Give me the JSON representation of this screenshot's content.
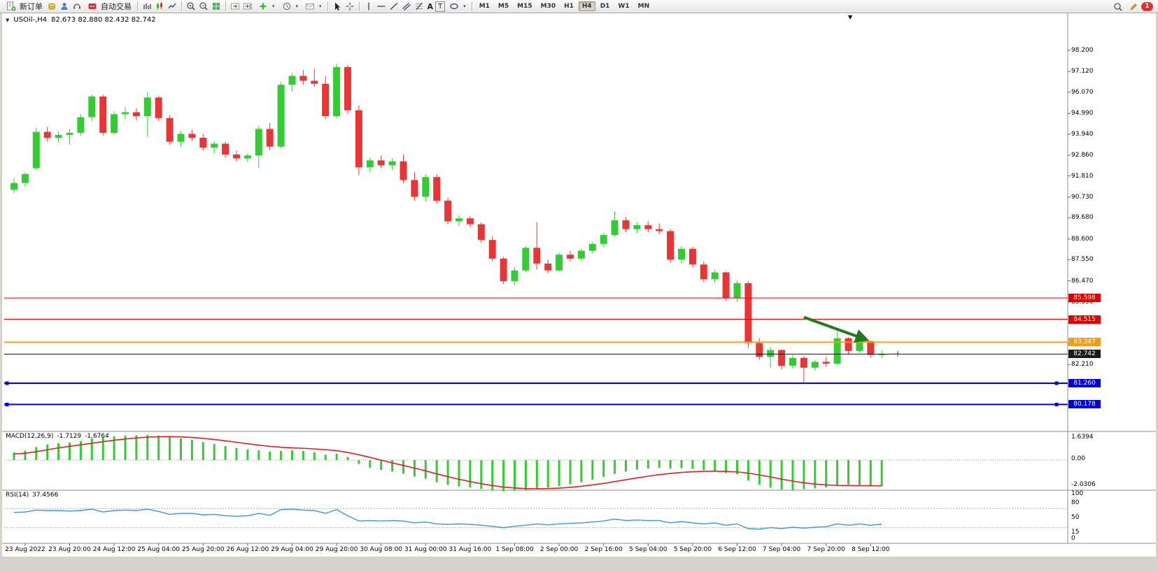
{
  "toolbar": {
    "new_order_label": "新订单",
    "autotrading_label": "自动交易",
    "text_tool_label": "A",
    "label_tool_label": "T",
    "timeframes": [
      "M1",
      "M5",
      "M15",
      "M30",
      "H1",
      "H4",
      "D1",
      "W1",
      "MN"
    ],
    "active_timeframe": "H4",
    "notification_count": "1"
  },
  "chart_header": {
    "symbol_period": "USOil-,H4",
    "ohlc_values": "82.673 82.880 82.432 82.742"
  },
  "price_axis": {
    "ticks": [
      "98.200",
      "97.120",
      "96.070",
      "94.990",
      "93.940",
      "92.860",
      "91.810",
      "90.730",
      "89.680",
      "88.600",
      "87.550",
      "86.470",
      "85.390",
      "84.340",
      "83.260",
      "82.210",
      "81.130",
      "80.080"
    ]
  },
  "line_objects": [
    {
      "price": 85.598,
      "label": "85.598",
      "color": "#f00000",
      "badge": "#e00000",
      "width": 1,
      "handles": false
    },
    {
      "price": 84.515,
      "label": "84.515",
      "color": "#f00000",
      "badge": "#e00000",
      "width": 1,
      "handles": false
    },
    {
      "price": 83.347,
      "label": "83.347",
      "color": "#f0a11a",
      "badge": "#ef9f16",
      "width": 2,
      "handles": false
    },
    {
      "price": 82.742,
      "label": "82.742",
      "color": "#111111",
      "badge": "#1a1a1a",
      "width": 1,
      "handles": false
    },
    {
      "price": 81.26,
      "label": "81.260",
      "color": "#0000e8",
      "badge": "#0000dd",
      "width": 2,
      "handles": true
    },
    {
      "price": 80.178,
      "label": "80.178",
      "color": "#0000e8",
      "badge": "#0000dd",
      "width": 2,
      "handles": true
    }
  ],
  "indicators": {
    "macd": {
      "label": "MACD(12,26,9)",
      "main_value": "-1.7129",
      "signal_value": "-1.6764",
      "scale_labels": [
        "1.6394",
        "0.00",
        "-2.0306"
      ]
    },
    "rsi": {
      "label": "RSI(14)",
      "value": "37.4566",
      "scale_labels": [
        "100",
        "80",
        "50",
        "15",
        "0"
      ]
    }
  },
  "time_axis": {
    "labels": [
      "23 Aug 2022",
      "23 Aug 20:00",
      "24 Aug 12:00",
      "25 Aug 04:00",
      "25 Aug 20:00",
      "26 Aug 12:00",
      "29 Aug 04:00",
      "29 Aug 20:00",
      "30 Aug 08:00",
      "31 Aug 00:00",
      "31 Aug 16:00",
      "1 Sep 08:00",
      "2 Sep 00:00",
      "2 Sep 16:00",
      "5 Sep 04:00",
      "5 Sep 20:00",
      "6 Sep 12:00",
      "7 Sep 04:00",
      "7 Sep 20:00",
      "8 Sep 12:00"
    ]
  },
  "chart_data": {
    "type": "candlestick",
    "symbol": "USOil",
    "timeframe": "H4",
    "ohlc_display": [
      82.673,
      82.88,
      82.432,
      82.742
    ],
    "colors": {
      "bull": "#33cc33",
      "bear": "#e83535",
      "macd_histogram": "#33cc33",
      "macd_signal": "#e02020",
      "rsi_line": "#3b95db"
    },
    "candles": [
      [
        91.1,
        91.7,
        90.95,
        91.45
      ],
      [
        91.45,
        92.0,
        91.25,
        91.9
      ],
      [
        92.2,
        94.25,
        92.1,
        94.05
      ],
      [
        94.05,
        94.3,
        93.55,
        93.75
      ],
      [
        93.75,
        94.1,
        93.5,
        93.9
      ],
      [
        93.9,
        94.2,
        93.4,
        94.0
      ],
      [
        94.0,
        94.95,
        93.85,
        94.8
      ],
      [
        94.8,
        95.95,
        94.6,
        95.85
      ],
      [
        95.85,
        95.95,
        93.85,
        94.0
      ],
      [
        94.0,
        95.1,
        93.9,
        94.95
      ],
      [
        94.95,
        95.3,
        94.7,
        95.05
      ],
      [
        95.05,
        95.25,
        94.65,
        94.85
      ],
      [
        94.85,
        96.1,
        93.8,
        95.8
      ],
      [
        95.8,
        95.9,
        94.6,
        94.75
      ],
      [
        94.75,
        94.9,
        93.4,
        93.55
      ],
      [
        93.55,
        94.1,
        93.3,
        93.95
      ],
      [
        93.95,
        94.15,
        93.6,
        93.75
      ],
      [
        93.75,
        93.95,
        93.1,
        93.25
      ],
      [
        93.25,
        93.6,
        92.95,
        93.45
      ],
      [
        93.45,
        93.55,
        92.75,
        92.9
      ],
      [
        92.9,
        93.1,
        92.55,
        92.7
      ],
      [
        92.7,
        92.95,
        92.5,
        92.85
      ],
      [
        92.85,
        94.35,
        92.2,
        94.2
      ],
      [
        94.2,
        94.5,
        93.1,
        93.3
      ],
      [
        93.3,
        96.6,
        93.2,
        96.45
      ],
      [
        96.45,
        97.05,
        96.1,
        96.9
      ],
      [
        96.9,
        97.2,
        96.45,
        96.65
      ],
      [
        96.65,
        97.25,
        96.35,
        96.5
      ],
      [
        96.5,
        96.9,
        94.7,
        94.85
      ],
      [
        94.85,
        97.5,
        94.75,
        97.35
      ],
      [
        97.35,
        97.45,
        94.95,
        95.15
      ],
      [
        95.15,
        95.4,
        91.85,
        92.25
      ],
      [
        92.25,
        92.75,
        92.0,
        92.6
      ],
      [
        92.6,
        92.85,
        92.2,
        92.35
      ],
      [
        92.35,
        92.7,
        92.1,
        92.55
      ],
      [
        92.55,
        92.9,
        91.45,
        91.6
      ],
      [
        91.6,
        92.0,
        90.55,
        90.75
      ],
      [
        90.75,
        91.9,
        90.5,
        91.75
      ],
      [
        91.75,
        91.9,
        90.4,
        90.55
      ],
      [
        90.55,
        90.7,
        89.35,
        89.5
      ],
      [
        89.5,
        89.8,
        89.25,
        89.65
      ],
      [
        89.65,
        89.75,
        89.2,
        89.35
      ],
      [
        89.35,
        89.45,
        88.4,
        88.55
      ],
      [
        88.55,
        88.75,
        87.45,
        87.6
      ],
      [
        87.6,
        87.7,
        86.3,
        86.45
      ],
      [
        86.45,
        87.15,
        86.25,
        87.0
      ],
      [
        87.0,
        88.25,
        86.9,
        88.15
      ],
      [
        88.15,
        89.45,
        87.05,
        87.35
      ],
      [
        87.35,
        87.55,
        86.85,
        87.0
      ],
      [
        87.0,
        87.9,
        86.95,
        87.8
      ],
      [
        87.8,
        88.0,
        87.45,
        87.6
      ],
      [
        87.6,
        88.1,
        87.5,
        88.0
      ],
      [
        88.0,
        88.45,
        87.85,
        88.35
      ],
      [
        88.35,
        88.9,
        88.2,
        88.8
      ],
      [
        88.8,
        90.0,
        88.7,
        89.55
      ],
      [
        89.55,
        89.7,
        88.95,
        89.1
      ],
      [
        89.1,
        89.45,
        88.9,
        89.3
      ],
      [
        89.3,
        89.5,
        88.95,
        89.1
      ],
      [
        89.1,
        89.4,
        88.85,
        89.0
      ],
      [
        89.0,
        89.1,
        87.4,
        87.55
      ],
      [
        87.55,
        88.25,
        87.35,
        88.1
      ],
      [
        88.1,
        88.2,
        87.15,
        87.3
      ],
      [
        87.3,
        87.45,
        86.4,
        86.55
      ],
      [
        86.55,
        87.05,
        86.35,
        86.9
      ],
      [
        86.9,
        86.95,
        85.45,
        85.6
      ],
      [
        85.6,
        86.5,
        85.4,
        86.35
      ],
      [
        86.35,
        86.45,
        83.05,
        83.3
      ],
      [
        83.3,
        83.55,
        82.45,
        82.6
      ],
      [
        82.6,
        83.1,
        82.05,
        82.95
      ],
      [
        82.95,
        83.0,
        81.95,
        82.15
      ],
      [
        82.15,
        82.7,
        82.0,
        82.55
      ],
      [
        82.55,
        82.65,
        81.25,
        82.05
      ],
      [
        82.05,
        82.45,
        81.9,
        82.35
      ],
      [
        82.35,
        82.6,
        82.1,
        82.25
      ],
      [
        82.25,
        83.9,
        82.2,
        83.55
      ],
      [
        83.55,
        83.6,
        82.75,
        82.9
      ],
      [
        82.9,
        83.5,
        82.8,
        83.4
      ],
      [
        83.4,
        83.45,
        82.55,
        82.7
      ],
      [
        82.7,
        82.95,
        82.55,
        82.742
      ]
    ],
    "macd_histogram": [
      0.5,
      0.62,
      0.85,
      1.02,
      1.1,
      1.15,
      1.25,
      1.42,
      1.5,
      1.55,
      1.6,
      1.62,
      1.64,
      1.6,
      1.5,
      1.42,
      1.32,
      1.18,
      1.05,
      0.92,
      0.8,
      0.7,
      0.64,
      0.55,
      0.6,
      0.64,
      0.6,
      0.52,
      0.35,
      0.42,
      0.2,
      -0.25,
      -0.5,
      -0.65,
      -0.75,
      -0.88,
      -1.08,
      -1.22,
      -1.45,
      -1.62,
      -1.72,
      -1.78,
      -1.88,
      -1.96,
      -2.03,
      -2.0,
      -1.94,
      -1.86,
      -1.8,
      -1.7,
      -1.58,
      -1.44,
      -1.28,
      -1.1,
      -0.9,
      -0.75,
      -0.62,
      -0.55,
      -0.5,
      -0.56,
      -0.53,
      -0.58,
      -0.64,
      -0.7,
      -0.85,
      -0.92,
      -1.32,
      -1.6,
      -1.8,
      -1.92,
      -1.95,
      -1.9,
      -1.84,
      -1.78,
      -1.65,
      -1.6,
      -1.62,
      -1.68,
      -1.71
    ],
    "macd_signal": [
      0.4,
      0.45,
      0.55,
      0.68,
      0.8,
      0.9,
      1.0,
      1.1,
      1.2,
      1.3,
      1.38,
      1.45,
      1.5,
      1.53,
      1.54,
      1.52,
      1.48,
      1.42,
      1.35,
      1.26,
      1.17,
      1.07,
      0.98,
      0.9,
      0.84,
      0.8,
      0.77,
      0.73,
      0.68,
      0.62,
      0.5,
      0.35,
      0.18,
      0.0,
      -0.18,
      -0.35,
      -0.52,
      -0.7,
      -0.9,
      -1.08,
      -1.25,
      -1.4,
      -1.54,
      -1.66,
      -1.76,
      -1.82,
      -1.86,
      -1.87,
      -1.86,
      -1.83,
      -1.78,
      -1.71,
      -1.62,
      -1.52,
      -1.4,
      -1.28,
      -1.16,
      -1.05,
      -0.95,
      -0.87,
      -0.8,
      -0.76,
      -0.73,
      -0.72,
      -0.74,
      -0.77,
      -0.85,
      -0.97,
      -1.1,
      -1.24,
      -1.37,
      -1.48,
      -1.56,
      -1.62,
      -1.65,
      -1.66,
      -1.67,
      -1.67,
      -1.68
    ],
    "rsi": [
      62,
      63,
      67,
      66,
      66,
      65,
      66,
      69,
      63,
      66,
      67,
      66,
      69,
      64,
      58,
      60,
      60,
      57,
      58,
      55,
      54,
      55,
      60,
      56,
      68,
      69,
      67,
      66,
      60,
      68,
      55,
      44,
      45,
      44,
      45,
      44,
      40,
      42,
      38,
      37,
      38,
      37,
      35,
      33,
      30,
      33,
      35,
      38,
      36,
      38,
      39,
      40,
      42,
      44,
      48,
      45,
      46,
      45,
      45,
      40,
      43,
      40,
      38,
      40,
      35,
      38,
      28,
      27,
      30,
      28,
      31,
      29,
      31,
      32,
      38,
      35,
      38,
      35,
      37.5
    ],
    "rsi_levels": [
      70,
      30
    ],
    "horizontal_lines": [
      85.598,
      84.515,
      83.347,
      82.742,
      81.26,
      80.178
    ],
    "arrow_annotation": {
      "from_bar": 71,
      "from_price": 84.62,
      "to_bar": 76.5,
      "to_price": 83.5,
      "color": "#1f7a1f"
    }
  }
}
